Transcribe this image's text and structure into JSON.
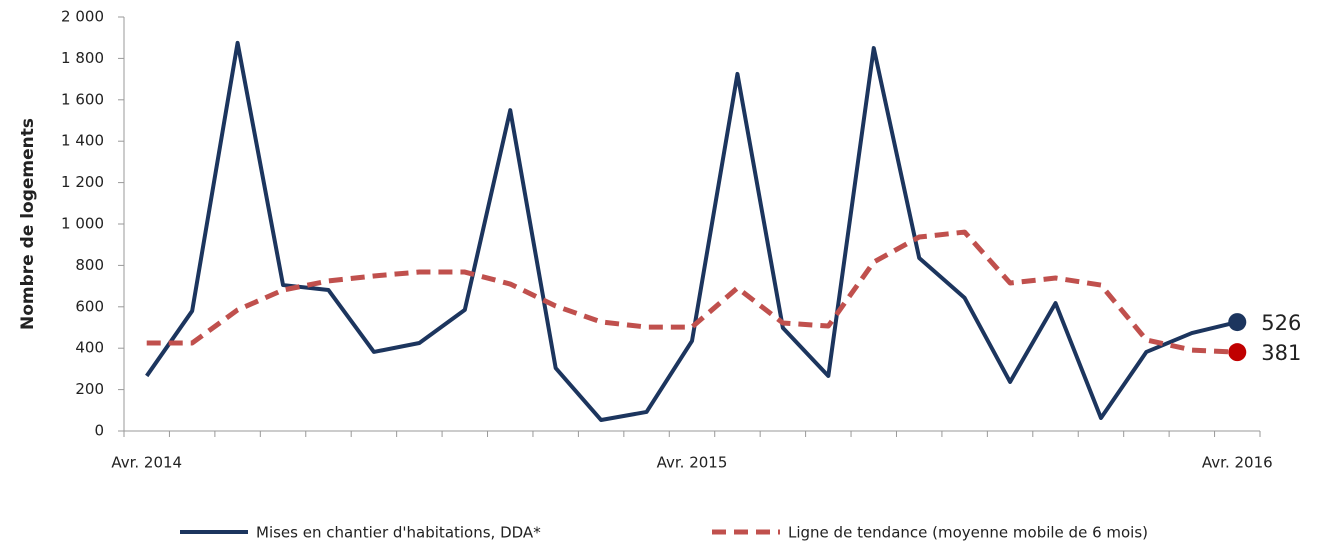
{
  "chart_data": {
    "type": "line",
    "ylabel": "Nombre de logements",
    "categories": [
      "Avr. 2014",
      null,
      null,
      null,
      null,
      null,
      null,
      null,
      null,
      null,
      null,
      null,
      "Avr. 2015",
      null,
      null,
      null,
      null,
      null,
      null,
      null,
      null,
      null,
      null,
      null,
      "Avr. 2016"
    ],
    "series": [
      {
        "name": "Mises en chantier d'habitations, DDA*",
        "color": "#1c355e",
        "dash": false,
        "end_marker_color": "#1c355e",
        "values": [
          266,
          580,
          1875,
          705,
          681,
          382,
          425,
          585,
          1550,
          304,
          53,
          92,
          435,
          1725,
          498,
          266,
          1850,
          836,
          643,
          237,
          618,
          63,
          382,
          473,
          526
        ]
      },
      {
        "name": "Ligne de tendance (moyenne mobile de 6 mois)",
        "color": "#c0504d",
        "dash": true,
        "end_marker_color": "#c00000",
        "values": [
          425,
          425,
          585,
          681,
          725,
          749,
          768,
          768,
          710,
          604,
          527,
          502,
          502,
          691,
          522,
          507,
          816,
          937,
          961,
          715,
          739,
          705,
          440,
          391,
          381
        ]
      }
    ],
    "ylim": [
      0,
      2000
    ],
    "yticks": [
      0,
      200,
      400,
      600,
      800,
      {
        "value": 1000,
        "label": "1 000"
      },
      {
        "value": 1200,
        "label": "1 200"
      },
      {
        "value": 1400,
        "label": "1 400"
      },
      {
        "value": 1600,
        "label": "1 600"
      },
      {
        "value": 1800,
        "label": "1 800"
      },
      {
        "value": 2000,
        "label": "2 000"
      }
    ],
    "grid": false,
    "legend": "bottom"
  }
}
